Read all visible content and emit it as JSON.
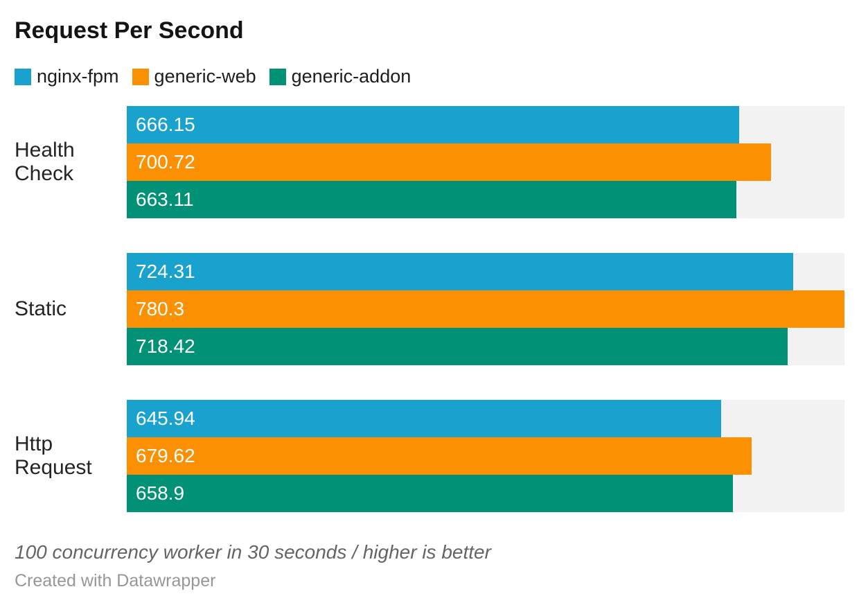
{
  "title": "Request Per Second",
  "legend": [
    {
      "label": "nginx-fpm",
      "color": "#1aa2ce"
    },
    {
      "label": "generic-web",
      "color": "#fa9002"
    },
    {
      "label": "generic-addon",
      "color": "#009176"
    }
  ],
  "chart_data": {
    "type": "bar",
    "orientation": "horizontal",
    "title": "Request Per Second",
    "categories": [
      "Health Check",
      "Static",
      "Http Request"
    ],
    "series": [
      {
        "name": "nginx-fpm",
        "color": "#1aa2ce",
        "values": [
          666.15,
          724.31,
          645.94
        ]
      },
      {
        "name": "generic-web",
        "color": "#fa9002",
        "values": [
          700.72,
          780.3,
          679.62
        ]
      },
      {
        "name": "generic-addon",
        "color": "#009176",
        "values": [
          663.11,
          718.42,
          658.9
        ]
      }
    ],
    "xlim": [
      0,
      780.3
    ],
    "value_labels_position": "inside-left",
    "value_label_color": "#ffffff",
    "track_color": "#f2f2f2",
    "legend_position": "top-left",
    "grid": false
  },
  "footer": {
    "note": "100 concurrency worker in 30 seconds / higher is better",
    "credit": "Created with Datawrapper"
  }
}
